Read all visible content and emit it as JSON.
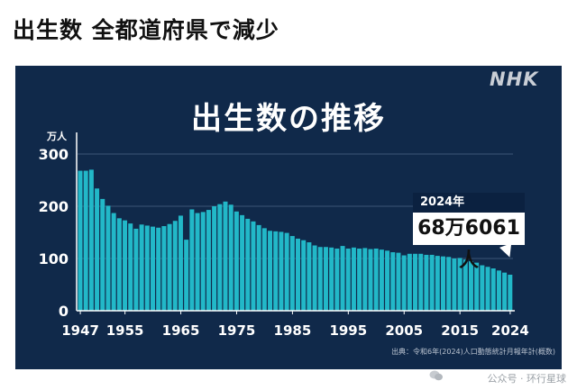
{
  "headline": "出生数 全都道府県で減少",
  "logo": "NHK",
  "chart_data": {
    "type": "bar",
    "title": "出生数の推移",
    "ylabel": "万人",
    "ylim": [
      0,
      300
    ],
    "yticks": [
      0,
      100,
      200,
      300
    ],
    "xticks": [
      1947,
      1955,
      1965,
      1975,
      1985,
      1995,
      2005,
      2015,
      2024
    ],
    "bar_color": "#22b8c8",
    "years": [
      1947,
      1948,
      1949,
      1950,
      1951,
      1952,
      1953,
      1954,
      1955,
      1956,
      1957,
      1958,
      1959,
      1960,
      1961,
      1962,
      1963,
      1964,
      1965,
      1966,
      1967,
      1968,
      1969,
      1970,
      1971,
      1972,
      1973,
      1974,
      1975,
      1976,
      1977,
      1978,
      1979,
      1980,
      1981,
      1982,
      1983,
      1984,
      1985,
      1986,
      1987,
      1988,
      1989,
      1990,
      1991,
      1992,
      1993,
      1994,
      1995,
      1996,
      1997,
      1998,
      1999,
      2000,
      2001,
      2002,
      2003,
      2004,
      2005,
      2006,
      2007,
      2008,
      2009,
      2010,
      2011,
      2012,
      2013,
      2014,
      2015,
      2016,
      2017,
      2018,
      2019,
      2020,
      2021,
      2022,
      2023,
      2024
    ],
    "values": [
      268,
      268,
      270,
      234,
      214,
      201,
      187,
      177,
      173,
      167,
      157,
      165,
      163,
      161,
      159,
      162,
      166,
      172,
      182,
      136,
      194,
      187,
      189,
      193,
      200,
      204,
      209,
      203,
      190,
      183,
      176,
      171,
      164,
      158,
      153,
      152,
      151,
      149,
      143,
      138,
      135,
      131,
      125,
      122,
      122,
      121,
      119,
      124,
      119,
      121,
      119,
      120,
      118,
      119,
      117,
      115,
      112,
      111,
      106,
      109,
      109,
      109,
      107,
      107,
      105,
      104,
      103,
      100,
      101,
      98,
      95,
      92,
      87,
      84,
      81,
      77,
      73,
      69
    ]
  },
  "callout": {
    "year": "2024年",
    "value": "68万6061人"
  },
  "source": "出典：令和6年(2024)人口動態統計月報年計(概数)",
  "watermark": "公众号 · 环行星球"
}
